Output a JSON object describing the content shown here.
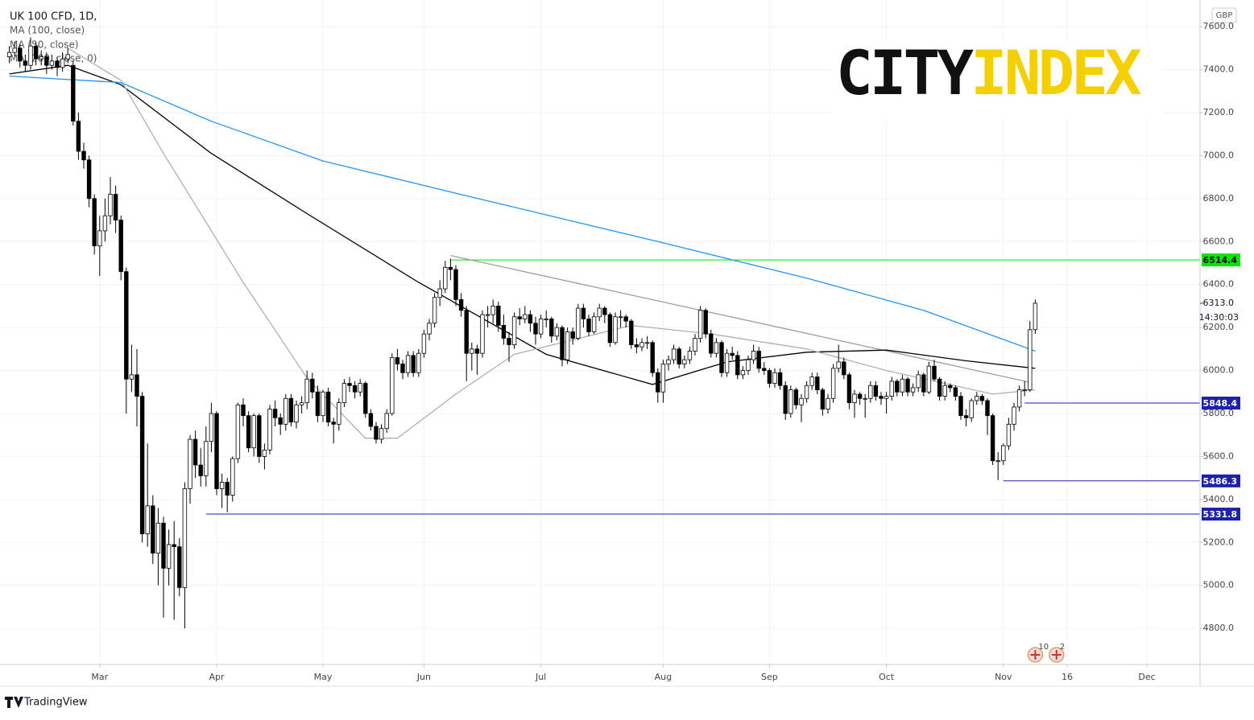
{
  "chart_data": {
    "type": "candlestick",
    "title": "UK 100 CFD, 1D,",
    "currency": "GBP",
    "up_color": "#ffffff",
    "down_color": "#000000",
    "outline_color": "#000000",
    "xlim": [
      -1,
      224
    ],
    "ylim": [
      4632,
      7724
    ],
    "grid": true,
    "xticks": [
      {
        "value": 17,
        "label": "Mar"
      },
      {
        "value": 39,
        "label": "Apr"
      },
      {
        "value": 59,
        "label": "May"
      },
      {
        "value": 78,
        "label": "Jun"
      },
      {
        "value": 100,
        "label": "Jul"
      },
      {
        "value": 123,
        "label": "Aug"
      },
      {
        "value": 143,
        "label": "Sep"
      },
      {
        "value": 165,
        "label": "Oct"
      },
      {
        "value": 187,
        "label": "Nov"
      },
      {
        "value": 199,
        "label": "16"
      },
      {
        "value": 214,
        "label": "Dec"
      }
    ],
    "yticks": [
      {
        "value": 4800,
        "label": "4800.0"
      },
      {
        "value": 5000,
        "label": "5000.0"
      },
      {
        "value": 5200,
        "label": "5200.0"
      },
      {
        "value": 5400,
        "label": "5400.0"
      },
      {
        "value": 5600,
        "label": "5600.0"
      },
      {
        "value": 5800,
        "label": "5800.0"
      },
      {
        "value": 6000,
        "label": "6000.0"
      },
      {
        "value": 6200,
        "label": "6200.0"
      },
      {
        "value": 6400,
        "label": "6400.0"
      },
      {
        "value": 6600,
        "label": "6600.0"
      },
      {
        "value": 6800,
        "label": "6800.0"
      },
      {
        "value": 7000,
        "label": "7000.0"
      },
      {
        "value": 7200,
        "label": "7200.0"
      },
      {
        "value": 7400,
        "label": "7400.0"
      },
      {
        "value": 7600,
        "label": "7600.0"
      }
    ],
    "candles": [
      [
        7460,
        7510,
        7430,
        7480
      ],
      [
        7480,
        7530,
        7460,
        7500
      ],
      [
        7500,
        7520,
        7410,
        7440
      ],
      [
        7440,
        7470,
        7390,
        7420
      ],
      [
        7420,
        7550,
        7400,
        7510
      ],
      [
        7510,
        7530,
        7420,
        7450
      ],
      [
        7450,
        7490,
        7420,
        7460
      ],
      [
        7460,
        7480,
        7380,
        7420
      ],
      [
        7420,
        7470,
        7400,
        7440
      ],
      [
        7440,
        7460,
        7370,
        7410
      ],
      [
        7410,
        7480,
        7390,
        7450
      ],
      [
        7450,
        7500,
        7430,
        7470
      ],
      [
        7420,
        7440,
        7140,
        7160
      ],
      [
        7160,
        7200,
        6980,
        7020
      ],
      [
        7020,
        7060,
        6940,
        6980
      ],
      [
        6980,
        7000,
        6760,
        6800
      ],
      [
        6800,
        6820,
        6540,
        6580
      ],
      [
        6580,
        6720,
        6440,
        6650
      ],
      [
        6650,
        6800,
        6600,
        6720
      ],
      [
        6720,
        6900,
        6680,
        6820
      ],
      [
        6820,
        6860,
        6640,
        6700
      ],
      [
        6700,
        6720,
        6420,
        6460
      ],
      [
        6460,
        6480,
        5800,
        5960
      ],
      [
        5960,
        6120,
        5900,
        5980
      ],
      [
        5980,
        6100,
        5740,
        5880
      ],
      [
        5880,
        5900,
        5200,
        5240
      ],
      [
        5240,
        5660,
        5180,
        5370
      ],
      [
        5370,
        5420,
        5100,
        5150
      ],
      [
        5150,
        5360,
        5000,
        5290
      ],
      [
        5290,
        5320,
        4850,
        5080
      ],
      [
        5080,
        5260,
        5000,
        5190
      ],
      [
        5190,
        5300,
        4840,
        5180
      ],
      [
        5180,
        5220,
        4950,
        4990
      ],
      [
        4990,
        5480,
        4800,
        5450
      ],
      [
        5450,
        5700,
        5380,
        5680
      ],
      [
        5680,
        5720,
        5500,
        5560
      ],
      [
        5560,
        5640,
        5460,
        5510
      ],
      [
        5510,
        5740,
        5460,
        5670
      ],
      [
        5670,
        5850,
        5620,
        5800
      ],
      [
        5800,
        5810,
        5420,
        5450
      ],
      [
        5450,
        5520,
        5360,
        5480
      ],
      [
        5480,
        5500,
        5340,
        5420
      ],
      [
        5420,
        5600,
        5390,
        5590
      ],
      [
        5590,
        5850,
        5570,
        5840
      ],
      [
        5840,
        5870,
        5740,
        5790
      ],
      [
        5790,
        5810,
        5620,
        5640
      ],
      [
        5640,
        5800,
        5600,
        5790
      ],
      [
        5790,
        5800,
        5570,
        5600
      ],
      [
        5600,
        5660,
        5540,
        5630
      ],
      [
        5630,
        5840,
        5610,
        5820
      ],
      [
        5820,
        5860,
        5740,
        5780
      ],
      [
        5780,
        5800,
        5700,
        5750
      ],
      [
        5750,
        5890,
        5720,
        5870
      ],
      [
        5870,
        5890,
        5740,
        5760
      ],
      [
        5760,
        5860,
        5730,
        5840
      ],
      [
        5840,
        5880,
        5800,
        5850
      ],
      [
        5850,
        6000,
        5820,
        5960
      ],
      [
        5960,
        5990,
        5870,
        5900
      ],
      [
        5900,
        5930,
        5760,
        5790
      ],
      [
        5790,
        5910,
        5760,
        5900
      ],
      [
        5900,
        5920,
        5740,
        5760
      ],
      [
        5760,
        5780,
        5660,
        5750
      ],
      [
        5750,
        5870,
        5720,
        5850
      ],
      [
        5850,
        5960,
        5830,
        5940
      ],
      [
        5940,
        5970,
        5900,
        5930
      ],
      [
        5930,
        5950,
        5870,
        5900
      ],
      [
        5900,
        5960,
        5880,
        5940
      ],
      [
        5940,
        5950,
        5780,
        5800
      ],
      [
        5800,
        5820,
        5720,
        5740
      ],
      [
        5740,
        5760,
        5660,
        5680
      ],
      [
        5680,
        5750,
        5660,
        5730
      ],
      [
        5730,
        5820,
        5710,
        5800
      ],
      [
        5800,
        6080,
        5790,
        6060
      ],
      [
        6060,
        6100,
        6000,
        6030
      ],
      [
        6030,
        6050,
        5960,
        5990
      ],
      [
        5990,
        6090,
        5970,
        6070
      ],
      [
        6070,
        6090,
        5970,
        5990
      ],
      [
        5990,
        6100,
        5970,
        6080
      ],
      [
        6080,
        6190,
        6060,
        6170
      ],
      [
        6170,
        6240,
        6140,
        6220
      ],
      [
        6220,
        6360,
        6200,
        6340
      ],
      [
        6340,
        6420,
        6300,
        6380
      ],
      [
        6380,
        6510,
        6360,
        6480
      ],
      [
        6480,
        6520,
        6420,
        6470
      ],
      [
        6470,
        6490,
        6300,
        6330
      ],
      [
        6330,
        6360,
        6250,
        6280
      ],
      [
        6280,
        6300,
        5950,
        6080
      ],
      [
        6080,
        6130,
        6000,
        6100
      ],
      [
        6100,
        6120,
        5980,
        6080
      ],
      [
        6080,
        6280,
        6060,
        6260
      ],
      [
        6260,
        6300,
        6200,
        6260
      ],
      [
        6260,
        6330,
        6220,
        6300
      ],
      [
        6300,
        6320,
        6180,
        6210
      ],
      [
        6210,
        6260,
        6120,
        6150
      ],
      [
        6150,
        6180,
        6040,
        6120
      ],
      [
        6120,
        6270,
        6100,
        6250
      ],
      [
        6250,
        6290,
        6210,
        6240
      ],
      [
        6240,
        6300,
        6220,
        6260
      ],
      [
        6260,
        6280,
        6180,
        6220
      ],
      [
        6220,
        6250,
        6120,
        6170
      ],
      [
        6170,
        6260,
        6150,
        6240
      ],
      [
        6240,
        6280,
        6200,
        6240
      ],
      [
        6240,
        6250,
        6130,
        6160
      ],
      [
        6160,
        6220,
        6140,
        6200
      ],
      [
        6200,
        6210,
        6020,
        6050
      ],
      [
        6050,
        6200,
        6030,
        6180
      ],
      [
        6180,
        6200,
        6120,
        6150
      ],
      [
        6150,
        6310,
        6140,
        6290
      ],
      [
        6290,
        6310,
        6200,
        6240
      ],
      [
        6240,
        6260,
        6160,
        6180
      ],
      [
        6180,
        6270,
        6170,
        6250
      ],
      [
        6250,
        6310,
        6230,
        6290
      ],
      [
        6290,
        6300,
        6220,
        6260
      ],
      [
        6260,
        6270,
        6110,
        6130
      ],
      [
        6130,
        6270,
        6120,
        6250
      ],
      [
        6250,
        6280,
        6200,
        6250
      ],
      [
        6250,
        6260,
        6200,
        6230
      ],
      [
        6230,
        6240,
        6100,
        6120
      ],
      [
        6120,
        6150,
        6080,
        6110
      ],
      [
        6110,
        6150,
        6090,
        6130
      ],
      [
        6130,
        6160,
        6100,
        6130
      ],
      [
        6130,
        6140,
        5970,
        5990
      ],
      [
        5990,
        6010,
        5850,
        5900
      ],
      [
        5900,
        6050,
        5850,
        6030
      ],
      [
        6030,
        6070,
        6000,
        6050
      ],
      [
        6050,
        6120,
        6030,
        6100
      ],
      [
        6100,
        6110,
        6010,
        6030
      ],
      [
        6030,
        6070,
        6010,
        6050
      ],
      [
        6050,
        6110,
        6030,
        6090
      ],
      [
        6090,
        6170,
        6070,
        6150
      ],
      [
        6150,
        6300,
        6130,
        6280
      ],
      [
        6280,
        6290,
        6150,
        6170
      ],
      [
        6170,
        6190,
        6060,
        6080
      ],
      [
        6080,
        6150,
        6060,
        6130
      ],
      [
        6130,
        6140,
        5970,
        5990
      ],
      [
        5990,
        6100,
        5970,
        6080
      ],
      [
        6080,
        6110,
        6050,
        6070
      ],
      [
        6070,
        6090,
        5960,
        5980
      ],
      [
        5980,
        6020,
        5960,
        6000
      ],
      [
        6000,
        6070,
        5980,
        6050
      ],
      [
        6050,
        6120,
        6030,
        6090
      ],
      [
        6090,
        6110,
        5990,
        6010
      ],
      [
        6010,
        6040,
        5980,
        6000
      ],
      [
        6000,
        6010,
        5920,
        5940
      ],
      [
        5940,
        6010,
        5920,
        5990
      ],
      [
        5990,
        6010,
        5910,
        5930
      ],
      [
        5930,
        5950,
        5770,
        5800
      ],
      [
        5800,
        5930,
        5780,
        5910
      ],
      [
        5910,
        5920,
        5820,
        5840
      ],
      [
        5840,
        5890,
        5760,
        5870
      ],
      [
        5870,
        5950,
        5850,
        5930
      ],
      [
        5930,
        5990,
        5910,
        5970
      ],
      [
        5970,
        5990,
        5890,
        5910
      ],
      [
        5910,
        5920,
        5790,
        5820
      ],
      [
        5820,
        5890,
        5800,
        5870
      ],
      [
        5870,
        6030,
        5850,
        6010
      ],
      [
        6010,
        6120,
        5990,
        6040
      ],
      [
        6040,
        6060,
        5960,
        5980
      ],
      [
        5980,
        5990,
        5820,
        5850
      ],
      [
        5850,
        5910,
        5780,
        5890
      ],
      [
        5890,
        5900,
        5840,
        5870
      ],
      [
        5870,
        5890,
        5780,
        5870
      ],
      [
        5870,
        5950,
        5850,
        5930
      ],
      [
        5930,
        5950,
        5860,
        5880
      ],
      [
        5880,
        5900,
        5840,
        5870
      ],
      [
        5870,
        5900,
        5800,
        5880
      ],
      [
        5880,
        5970,
        5860,
        5950
      ],
      [
        5950,
        5960,
        5880,
        5900
      ],
      [
        5900,
        5980,
        5880,
        5960
      ],
      [
        5960,
        5970,
        5880,
        5900
      ],
      [
        5900,
        5940,
        5880,
        5920
      ],
      [
        5920,
        6000,
        5900,
        5980
      ],
      [
        5980,
        5990,
        5880,
        5900
      ],
      [
        5900,
        6040,
        5890,
        6020
      ],
      [
        6020,
        6050,
        5950,
        5960
      ],
      [
        5960,
        5970,
        5860,
        5880
      ],
      [
        5880,
        5950,
        5860,
        5930
      ],
      [
        5930,
        5940,
        5900,
        5920
      ],
      [
        5920,
        5930,
        5860,
        5880
      ],
      [
        5880,
        5900,
        5770,
        5790
      ],
      [
        5790,
        5820,
        5740,
        5780
      ],
      [
        5780,
        5870,
        5760,
        5860
      ],
      [
        5860,
        5900,
        5840,
        5880
      ],
      [
        5880,
        5890,
        5840,
        5860
      ],
      [
        5860,
        5870,
        5700,
        5790
      ],
      [
        5790,
        5800,
        5560,
        5580
      ],
      [
        5580,
        5620,
        5490,
        5580
      ],
      [
        5580,
        5660,
        5560,
        5650
      ],
      [
        5650,
        5780,
        5630,
        5750
      ],
      [
        5750,
        5850,
        5720,
        5830
      ],
      [
        5830,
        5930,
        5810,
        5910
      ],
      [
        5910,
        5950,
        5880,
        5910
      ],
      [
        5910,
        6230,
        5900,
        6190
      ],
      [
        6190,
        6330,
        6170,
        6313
      ]
    ],
    "series": [
      {
        "name": "MA (100, close)",
        "color": "#000000",
        "x": [
          0,
          11,
          21,
          38,
          56,
          77,
          101,
          121,
          135,
          150,
          165,
          180,
          193
        ],
        "values": [
          7380,
          7420,
          7330,
          7010,
          6730,
          6410,
          6075,
          5935,
          6040,
          6085,
          6095,
          6045,
          6010
        ]
      },
      {
        "name": "MA (50, close)",
        "color": "#b0b0b0",
        "x": [
          11,
          21,
          29,
          44,
          56,
          67,
          73,
          84,
          95,
          117,
          132,
          150,
          165,
          185,
          193
        ],
        "values": [
          7500,
          7350,
          7010,
          6410,
          5965,
          5685,
          5685,
          5890,
          6075,
          6210,
          6170,
          6100,
          6000,
          5890,
          5910
        ]
      },
      {
        "name": "MA (200, close, 0)",
        "color": "#2196f3",
        "x": [
          0,
          21,
          38,
          59,
          84,
          122,
          150,
          172,
          193
        ],
        "values": [
          7370,
          7340,
          7160,
          6975,
          6825,
          6600,
          6430,
          6280,
          6090
        ]
      }
    ],
    "trendline": {
      "x": [
        83,
        192
      ],
      "values": [
        6535,
        5945
      ],
      "color": "#9e9e9e"
    },
    "levels": [
      {
        "value": 6514.4,
        "color": "#00e600",
        "text_color": "#000000",
        "from": 83
      },
      {
        "value": 5848.4,
        "color": "#1e22aa",
        "text_color": "#ffffff",
        "from": 191
      },
      {
        "value": 5486.3,
        "color": "#1e22aa",
        "text_color": "#ffffff",
        "from": 187
      },
      {
        "value": 5331.8,
        "color": "#1e22aa",
        "text_color": "#ffffff",
        "from": 37
      }
    ],
    "current_price": {
      "value": 6313,
      "label": "6313.0"
    },
    "countdown": "14:30:03",
    "events": [
      {
        "x": 193,
        "label": "10"
      },
      {
        "x": 197,
        "label": "2"
      }
    ]
  },
  "logo": {
    "part1": "CITY",
    "part2": "INDEX"
  },
  "footer": "TradingView"
}
